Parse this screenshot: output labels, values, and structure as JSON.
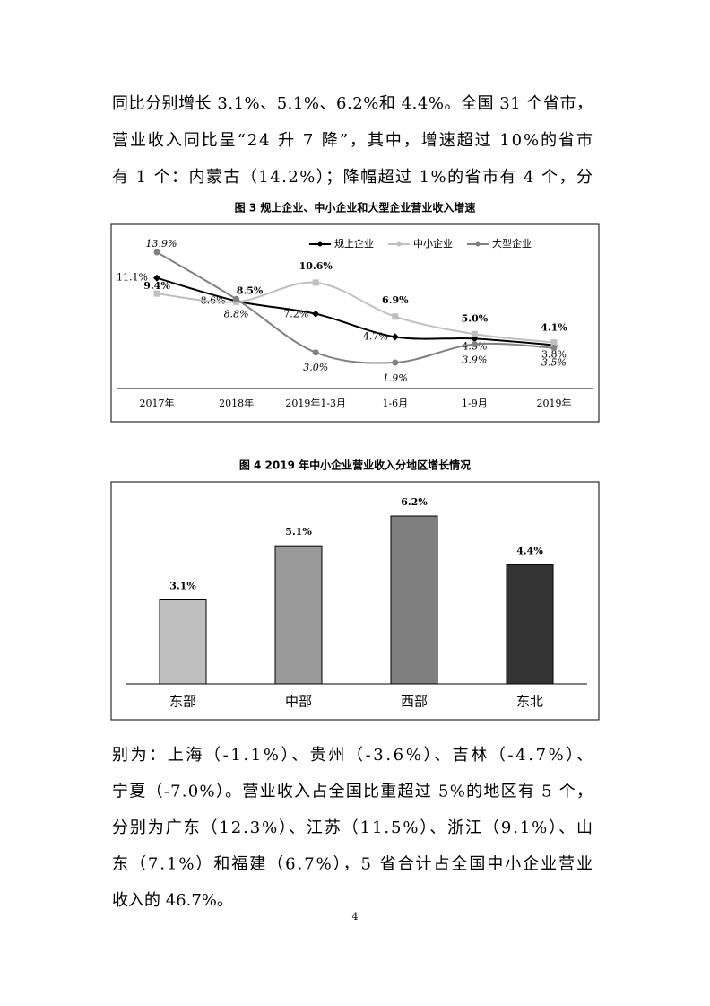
{
  "text_top": [
    "同比分别增长 3.1%、5.1%、6.2%和 4.4%。全国 31 个省市，",
    "营业收入同比呈“24 升 7 降”，其中，增速超过 10%的省市",
    "有 1 个：内蒙古（14.2%）；降幅超过 1%的省市有 4 个，分"
  ],
  "chart_data": [
    {
      "type": "line",
      "title": "图 3   规上企业、中小企业和大型企业营业收入增速",
      "categories": [
        "2017年",
        "2018年",
        "2019年1-3月",
        "1-6月",
        "1-9月",
        "2019年"
      ],
      "series": [
        {
          "name": "规上企业",
          "color": "#000000",
          "values": [
            11.1,
            8.6,
            7.2,
            4.7,
            4.5,
            3.8
          ],
          "value_labels": [
            "11.1%",
            "8.6%",
            "7.2%",
            "4.7%",
            "4.5%",
            "3.8%"
          ]
        },
        {
          "name": "中小企业",
          "color": "#bfbfbf",
          "values": [
            9.4,
            8.5,
            10.6,
            6.9,
            5.0,
            4.1
          ],
          "value_labels": [
            "9.4%",
            "8.5%",
            "10.6%",
            "6.9%",
            "5.0%",
            "4.1%"
          ]
        },
        {
          "name": "大型企业",
          "color": "#808080",
          "values": [
            13.9,
            8.8,
            3.0,
            1.9,
            3.9,
            3.5
          ],
          "value_labels": [
            "13.9%",
            "8.8%",
            "3.0%",
            "1.9%",
            "3.9%",
            "3.5%"
          ]
        }
      ]
    },
    {
      "type": "bar",
      "title": "图 4   2019 年中小企业营业收入分地区增长情况",
      "categories": [
        "东部",
        "中部",
        "西部",
        "东北"
      ],
      "values": [
        3.1,
        5.1,
        6.2,
        4.4
      ],
      "value_labels": [
        "3.1%",
        "5.1%",
        "6.2%",
        "4.4%"
      ],
      "colors": [
        "#bfbfbf",
        "#999999",
        "#7f7f7f",
        "#333333"
      ]
    }
  ],
  "text_bottom": [
    "别为：上海（-1.1%）、贵州（-3.6%）、吉林（-4.7%）、",
    "宁夏（-7.0%）。营业收入占全国比重超过 5%的地区有 5 个，",
    "分别为广东（12.3%）、江苏（11.5%）、浙江（9.1%）、山",
    "东（7.1%）和福建（6.7%），5 省合计占全国中小企业营业",
    "收入的 46.7%。"
  ],
  "page_number": "4"
}
